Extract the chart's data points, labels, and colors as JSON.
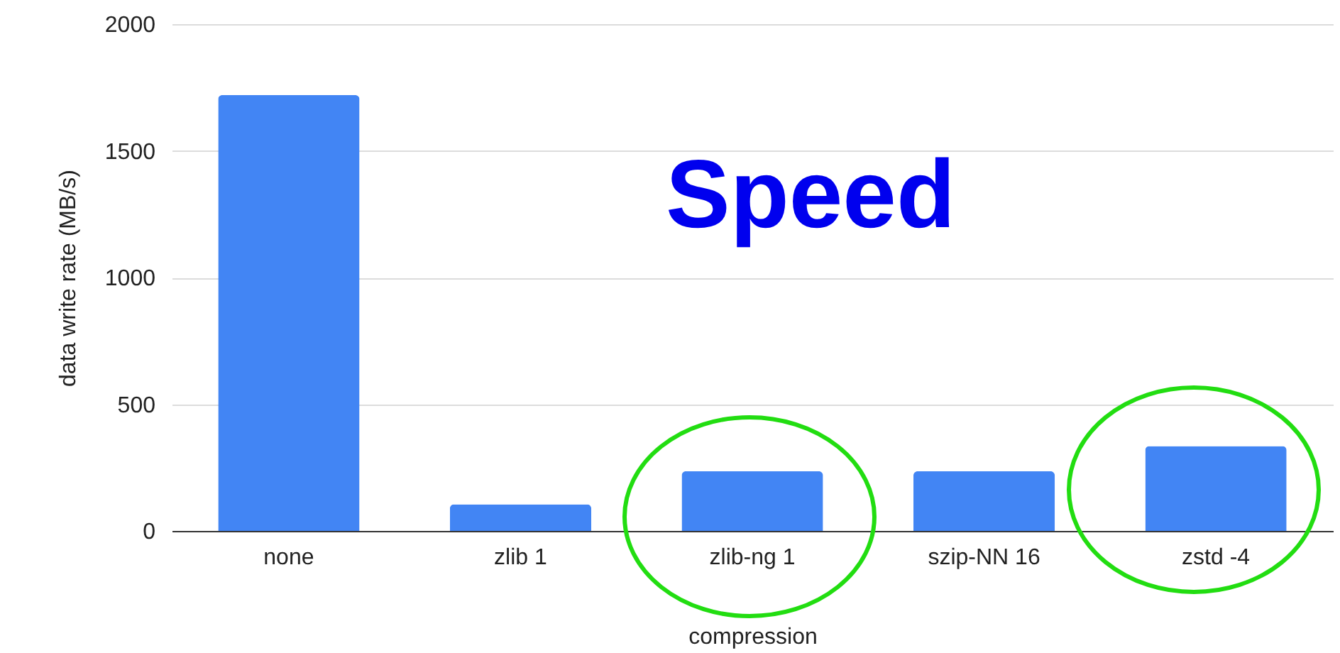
{
  "chart_data": {
    "type": "bar",
    "xlabel": "compression",
    "ylabel": "data write rate (MB/s)",
    "categories": [
      "none",
      "zlib 1",
      "zlib-ng 1",
      "szip-NN 16",
      "zstd -4"
    ],
    "values": [
      1720,
      105,
      235,
      235,
      335
    ],
    "color": "#4285f4",
    "ylim": [
      0,
      2000
    ],
    "yticks": [
      0,
      500,
      1000,
      1500,
      2000
    ],
    "grid": "y",
    "annotations": [
      "Speed"
    ]
  }
}
